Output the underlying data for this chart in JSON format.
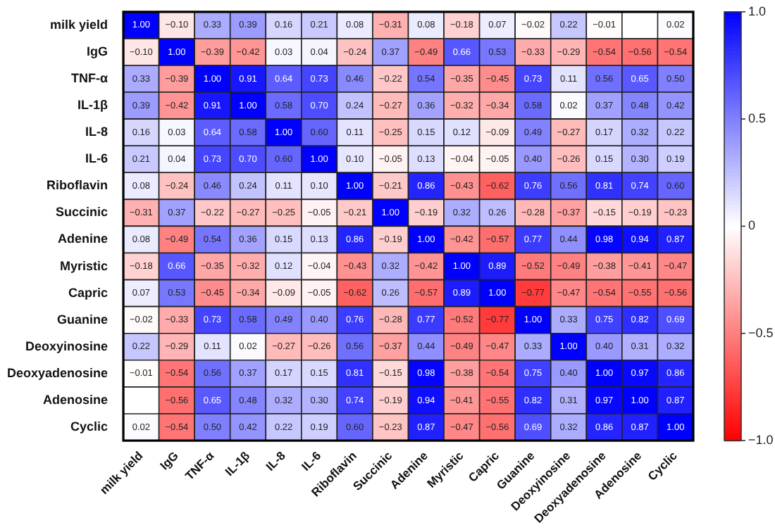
{
  "chart_data": {
    "type": "heatmap",
    "data_labels": true,
    "categories": [
      "milk yield",
      "IgG",
      "TNF-α",
      "IL-1β",
      "IL-8",
      "IL-6",
      "Riboflavin",
      "Succinic",
      "Adenine",
      "Myristic",
      "Capric",
      "Guanine",
      "Deoxyinosine",
      "Deoxyadenosine",
      "Adenosine",
      "Cyclic"
    ],
    "y_categories": [
      "milk yield",
      "IgG",
      "TNF-α",
      "IL-1β",
      "IL-8",
      "IL-6",
      "Riboflavin",
      "Succinic",
      "Adenine",
      "Myristic",
      "Capric",
      "Guanine",
      "Deoxyinosine",
      "Deoxyadenosine",
      "Adenosine",
      "Cyclic"
    ],
    "cells": [
      [
        1.0,
        -0.1,
        0.33,
        0.39,
        0.16,
        0.21,
        0.08,
        -0.31,
        0.08,
        -0.18,
        0.07,
        -0.02,
        0.22,
        -0.01,
        null,
        0.02
      ],
      [
        -0.1,
        1.0,
        -0.39,
        -0.42,
        0.03,
        0.04,
        -0.24,
        0.37,
        -0.49,
        0.66,
        0.53,
        -0.33,
        -0.29,
        -0.54,
        -0.56,
        -0.54
      ],
      [
        0.33,
        -0.39,
        1.0,
        0.91,
        0.64,
        0.73,
        0.46,
        -0.22,
        0.54,
        -0.35,
        -0.45,
        0.73,
        0.11,
        0.56,
        0.65,
        0.5
      ],
      [
        0.39,
        -0.42,
        0.91,
        1.0,
        0.58,
        0.7,
        0.24,
        -0.27,
        0.36,
        -0.32,
        -0.34,
        0.58,
        0.02,
        0.37,
        0.48,
        0.42
      ],
      [
        0.16,
        0.03,
        0.64,
        0.58,
        1.0,
        0.6,
        0.11,
        -0.25,
        0.15,
        0.12,
        -0.09,
        0.49,
        -0.27,
        0.17,
        0.32,
        0.22
      ],
      [
        0.21,
        0.04,
        0.73,
        0.7,
        0.6,
        1.0,
        0.1,
        -0.05,
        0.13,
        -0.04,
        -0.05,
        0.4,
        -0.26,
        0.15,
        0.3,
        0.19
      ],
      [
        0.08,
        -0.24,
        0.46,
        0.24,
        0.11,
        0.1,
        1.0,
        -0.21,
        0.86,
        -0.43,
        -0.62,
        0.76,
        0.56,
        0.81,
        0.74,
        0.6
      ],
      [
        -0.31,
        0.37,
        -0.22,
        -0.27,
        -0.25,
        -0.05,
        -0.21,
        1.0,
        -0.19,
        0.32,
        0.26,
        -0.28,
        -0.37,
        -0.15,
        -0.19,
        -0.23
      ],
      [
        0.08,
        -0.49,
        0.54,
        0.36,
        0.15,
        0.13,
        0.86,
        -0.19,
        1.0,
        -0.42,
        -0.57,
        0.77,
        0.44,
        0.98,
        0.94,
        0.87
      ],
      [
        -0.18,
        0.66,
        -0.35,
        -0.32,
        0.12,
        -0.04,
        -0.43,
        0.32,
        -0.42,
        1.0,
        0.89,
        -0.52,
        -0.49,
        -0.38,
        -0.41,
        -0.47
      ],
      [
        0.07,
        0.53,
        -0.45,
        -0.34,
        -0.09,
        -0.05,
        -0.62,
        0.26,
        -0.57,
        0.89,
        1.0,
        -0.77,
        -0.47,
        -0.54,
        -0.55,
        -0.56
      ],
      [
        -0.02,
        -0.33,
        0.73,
        0.58,
        0.49,
        0.4,
        0.76,
        -0.28,
        0.77,
        -0.52,
        -0.77,
        1.0,
        0.33,
        0.75,
        0.82,
        0.69
      ],
      [
        0.22,
        -0.29,
        0.11,
        0.02,
        -0.27,
        -0.26,
        0.56,
        -0.37,
        0.44,
        -0.49,
        -0.47,
        0.33,
        1.0,
        0.4,
        0.31,
        0.32
      ],
      [
        -0.01,
        -0.54,
        0.56,
        0.37,
        0.17,
        0.15,
        0.81,
        -0.15,
        0.98,
        -0.38,
        -0.54,
        0.75,
        0.4,
        1.0,
        0.97,
        0.86
      ],
      [
        null,
        -0.56,
        0.65,
        0.48,
        0.32,
        0.3,
        0.74,
        -0.19,
        0.94,
        -0.41,
        -0.55,
        0.82,
        0.31,
        0.97,
        1.0,
        0.87
      ],
      [
        0.02,
        -0.54,
        0.5,
        0.42,
        0.22,
        0.19,
        0.6,
        -0.23,
        0.87,
        -0.47,
        -0.56,
        0.69,
        0.32,
        0.86,
        0.87,
        1.0
      ]
    ],
    "cell_labels": [
      [
        "1.00",
        "−0.10",
        "0.33",
        "0.39",
        "0.16",
        "0.21",
        "0.08",
        "−0.31",
        "0.08",
        "−0.18",
        "0.07",
        "−0.02",
        "0.22",
        "−0.01",
        null,
        "0.02"
      ],
      [
        "−0.10",
        "1.00",
        "−0.39",
        "−0.42",
        "0.03",
        "0.04",
        "−0.24",
        "0.37",
        "−0.49",
        "0.66",
        "0.53",
        "−0.33",
        "−0.29",
        "−0.54",
        "−0.56",
        "−0.54"
      ],
      [
        "0.33",
        "−0.39",
        "1.00",
        "0.91",
        "0.64",
        "0.73",
        "0.46",
        "−0.22",
        "0.54",
        "−0.35",
        "−0.45",
        "0.73",
        "0.11",
        "0.56",
        "0.65",
        "0.50"
      ],
      [
        "0.39",
        "−0.42",
        "0.91",
        "1.00",
        "0.58",
        "0.70",
        "0.24",
        "−0.27",
        "0.36",
        "−0.32",
        "−0.34",
        "0.58",
        "0.02",
        "0.37",
        "0.48",
        "0.42"
      ],
      [
        "0.16",
        "0.03",
        "0.64",
        "0.58",
        "1.00",
        "0.60",
        "0.11",
        "−0.25",
        "0.15",
        "0.12",
        "−0.09",
        "0.49",
        "−0.27",
        "0.17",
        "0.32",
        "0.22"
      ],
      [
        "0.21",
        "0.04",
        "0.73",
        "0.70",
        "0.60",
        "1.00",
        "0.10",
        "−0.05",
        "0.13",
        "−0.04",
        "−0.05",
        "0.40",
        "−0.26",
        "0.15",
        "0.30",
        "0.19"
      ],
      [
        "0.08",
        "−0.24",
        "0.46",
        "0.24",
        "0.11",
        "0.10",
        "1.00",
        "−0.21",
        "0.86",
        "−0.43",
        "−0.62",
        "0.76",
        "0.56",
        "0.81",
        "0.74",
        "0.60"
      ],
      [
        "−0.31",
        "0.37",
        "−0.22",
        "−0.27",
        "−0.25",
        "−0.05",
        "−0.21",
        "1.00",
        "−0.19",
        "0.32",
        "0.26",
        "−0.28",
        "−0.37",
        "−0.15",
        "−0.19",
        "−0.23"
      ],
      [
        "0.08",
        "−0.49",
        "0.54",
        "0.36",
        "0.15",
        "0.13",
        "0.86",
        "−0.19",
        "1.00",
        "−0.42",
        "−0.57",
        "0.77",
        "0.44",
        "0.98",
        "0.94",
        "0.87"
      ],
      [
        "−0.18",
        "0.66",
        "−0.35",
        "−0.32",
        "0.12",
        "−0.04",
        "−0.43",
        "0.32",
        "−0.42",
        "1.00",
        "0.89",
        "−0.52",
        "−0.49",
        "−0.38",
        "−0.41",
        "−0.47"
      ],
      [
        "0.07",
        "0.53",
        "−0.45",
        "−0.34",
        "−0.09",
        "−0.05",
        "−0.62",
        "0.26",
        "−0.57",
        "0.89",
        "1.00",
        "−0.77",
        "−0.47",
        "−0.54",
        "−0.55",
        "−0.56"
      ],
      [
        "−0.02",
        "−0.33",
        "0.73",
        "0.58",
        "0.49",
        "0.40",
        "0.76",
        "−0.28",
        "0.77",
        "−0.52",
        "−0.77",
        "1.00",
        "0.33",
        "0.75",
        "0.82",
        "0.69"
      ],
      [
        "0.22",
        "−0.29",
        "0.11",
        "0.02",
        "−0.27",
        "−0.26",
        "0.56",
        "−0.37",
        "0.44",
        "−0.49",
        "−0.47",
        "0.33",
        "1.00",
        "0.40",
        "0.31",
        "0.32"
      ],
      [
        "−0.01",
        "−0.54",
        "0.56",
        "0.37",
        "0.17",
        "0.15",
        "0.81",
        "−0.15",
        "0.98",
        "−0.38",
        "−0.54",
        "0.75",
        "0.40",
        "1.00",
        "0.97",
        "0.86"
      ],
      [
        null,
        "−0.56",
        "0.65",
        "0.48",
        "0.32",
        "0.30",
        "0.74",
        "−0.19",
        "0.94",
        "−0.41",
        "−0.55",
        "0.82",
        "0.31",
        "0.97",
        "1.00",
        "0.87"
      ],
      [
        "0.02",
        "−0.54",
        "0.50",
        "0.42",
        "0.22",
        "0.19",
        "0.60",
        "−0.23",
        "0.87",
        "−0.47",
        "−0.56",
        "0.69",
        "0.32",
        "0.86",
        "0.87",
        "1.00"
      ]
    ],
    "clim": [
      -1,
      1
    ],
    "cticks": [
      {
        "value": 1,
        "label": "1.0"
      },
      0.5,
      0,
      {
        "value": -0.5,
        "label": "−0.5"
      },
      {
        "value": -1,
        "label": "−1.0"
      }
    ]
  }
}
